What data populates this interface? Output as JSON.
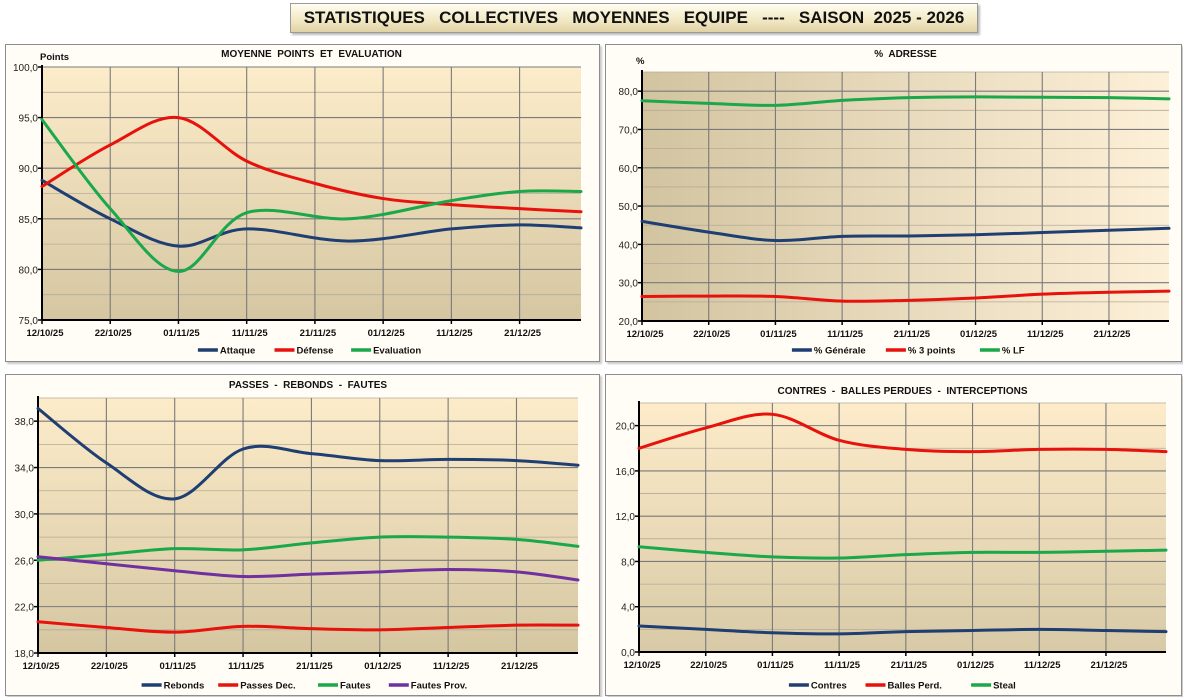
{
  "banner": {
    "title": "STATISTIQUES   COLLECTIVES   MOYENNES   EQUIPE   ----   SAISON  2025 - 2026"
  },
  "chart_data": [
    {
      "type": "line",
      "title": "MOYENNE  POINTS  ET  EVALUATION",
      "ylabel": "Points",
      "xlabel": "",
      "x_unit": "days since 12/10/25",
      "xlim": [
        0,
        79
      ],
      "ylim": [
        75,
        100
      ],
      "yticks": [
        75,
        80,
        85,
        90,
        95,
        100
      ],
      "ytick_labels": [
        "75,0",
        "80,0",
        "85,0",
        "90,0",
        "95,0",
        "100,0"
      ],
      "xticks": [
        0,
        10,
        20,
        30,
        40,
        50,
        60,
        70
      ],
      "xtick_labels": [
        "12/10/25",
        "22/10/25",
        "01/11/25",
        "11/11/25",
        "21/11/25",
        "01/12/25",
        "11/12/25",
        "21/12/25"
      ],
      "grid": true,
      "legend": "bottom",
      "series": [
        {
          "name": "Attaque",
          "color": "#1f3f73",
          "x": [
            0,
            10,
            20,
            30,
            45,
            60,
            70,
            79
          ],
          "values": [
            88.8,
            85.0,
            82.3,
            84.0,
            82.8,
            84.0,
            84.4,
            84.1
          ]
        },
        {
          "name": "Défense",
          "color": "#e8120c",
          "x": [
            0,
            10,
            20,
            30,
            40,
            50,
            60,
            70,
            79
          ],
          "values": [
            88.2,
            92.3,
            95.0,
            90.7,
            88.5,
            87.0,
            86.4,
            86.0,
            85.7
          ]
        },
        {
          "name": "Evaluation",
          "color": "#1aa84a",
          "x": [
            0,
            10,
            20,
            30,
            45,
            60,
            70,
            79
          ],
          "values": [
            94.8,
            86.0,
            79.8,
            85.6,
            85.0,
            86.8,
            87.7,
            87.7
          ]
        }
      ]
    },
    {
      "type": "line",
      "title": "%  ADRESSE",
      "ylabel": "%",
      "xlabel": "",
      "x_unit": "days since 12/10/25",
      "xlim": [
        0,
        79
      ],
      "ylim": [
        20,
        85
      ],
      "yticks": [
        20,
        30,
        40,
        50,
        60,
        70,
        80
      ],
      "ytick_labels": [
        "20,0",
        "30,0",
        "40,0",
        "50,0",
        "60,0",
        "70,0",
        "80,0"
      ],
      "xticks": [
        0,
        10,
        20,
        30,
        40,
        50,
        60,
        70
      ],
      "xtick_labels": [
        "12/10/25",
        "22/10/25",
        "01/11/25",
        "11/11/25",
        "21/11/25",
        "01/12/25",
        "11/12/25",
        "21/12/25"
      ],
      "grid": true,
      "legend": "bottom",
      "series": [
        {
          "name": "% Générale",
          "color": "#1f3f73",
          "x": [
            0,
            10,
            20,
            30,
            40,
            50,
            60,
            70,
            79
          ],
          "values": [
            46.0,
            43.2,
            41.0,
            42.1,
            42.2,
            42.5,
            43.1,
            43.7,
            44.2
          ]
        },
        {
          "name": "% 3 points",
          "color": "#e8120c",
          "x": [
            0,
            10,
            20,
            30,
            40,
            50,
            60,
            70,
            79
          ],
          "values": [
            26.4,
            26.5,
            26.4,
            25.2,
            25.4,
            26.0,
            27.0,
            27.5,
            27.8
          ]
        },
        {
          "name": "% LF",
          "color": "#1aa84a",
          "x": [
            0,
            10,
            20,
            30,
            40,
            50,
            60,
            70,
            79
          ],
          "values": [
            77.5,
            76.8,
            76.3,
            77.6,
            78.3,
            78.5,
            78.4,
            78.3,
            78.0
          ]
        }
      ]
    },
    {
      "type": "line",
      "title": "PASSES  -  REBONDS  -  FAUTES",
      "ylabel": "",
      "xlabel": "",
      "x_unit": "days since 12/10/25",
      "xlim": [
        0,
        79
      ],
      "ylim": [
        18,
        40
      ],
      "yticks": [
        18,
        22,
        26,
        30,
        34,
        38
      ],
      "ytick_labels": [
        "18,0",
        "22,0",
        "26,0",
        "30,0",
        "34,0",
        "38,0"
      ],
      "xticks": [
        0,
        10,
        20,
        30,
        40,
        50,
        60,
        70
      ],
      "xtick_labels": [
        "12/10/25",
        "22/10/25",
        "01/11/25",
        "11/11/25",
        "21/11/25",
        "01/12/25",
        "11/12/25",
        "21/12/25"
      ],
      "grid": true,
      "legend": "bottom",
      "series": [
        {
          "name": "Rebonds",
          "color": "#1f3f73",
          "x": [
            0,
            10,
            20,
            30,
            40,
            50,
            60,
            70,
            79
          ],
          "values": [
            39.1,
            34.4,
            31.3,
            35.6,
            35.2,
            34.6,
            34.7,
            34.6,
            34.2
          ]
        },
        {
          "name": "Passes Dec.",
          "color": "#e8120c",
          "x": [
            0,
            10,
            20,
            30,
            40,
            50,
            60,
            70,
            79
          ],
          "values": [
            20.7,
            20.2,
            19.8,
            20.3,
            20.1,
            20.0,
            20.2,
            20.4,
            20.4
          ]
        },
        {
          "name": "Fautes",
          "color": "#1aa84a",
          "x": [
            0,
            10,
            20,
            30,
            40,
            50,
            60,
            70,
            79
          ],
          "values": [
            26.0,
            26.5,
            27.0,
            26.9,
            27.5,
            28.0,
            28.0,
            27.8,
            27.2
          ]
        },
        {
          "name": "Fautes Prov.",
          "color": "#7030a0",
          "x": [
            0,
            10,
            20,
            30,
            40,
            50,
            60,
            70,
            79
          ],
          "values": [
            26.3,
            25.7,
            25.1,
            24.6,
            24.8,
            25.0,
            25.2,
            25.0,
            24.3
          ]
        }
      ]
    },
    {
      "type": "line",
      "title": "CONTRES  -  BALLES PERDUES  -  INTERCEPTIONS",
      "ylabel": "",
      "xlabel": "",
      "x_unit": "days since 12/10/25",
      "xlim": [
        0,
        79
      ],
      "ylim": [
        0,
        22
      ],
      "yticks": [
        0,
        4,
        8,
        12,
        16,
        20
      ],
      "ytick_labels": [
        "0,0",
        "4,0",
        "8,0",
        "12,0",
        "16,0",
        "20,0"
      ],
      "xticks": [
        0,
        10,
        20,
        30,
        40,
        50,
        60,
        70
      ],
      "xtick_labels": [
        "12/10/25",
        "22/10/25",
        "01/11/25",
        "11/11/25",
        "21/11/25",
        "01/12/25",
        "11/12/25",
        "21/12/25"
      ],
      "grid": true,
      "legend": "bottom",
      "series": [
        {
          "name": "Contres",
          "color": "#1f3f73",
          "x": [
            0,
            10,
            20,
            30,
            40,
            50,
            60,
            70,
            79
          ],
          "values": [
            2.3,
            2.0,
            1.7,
            1.6,
            1.8,
            1.9,
            2.0,
            1.9,
            1.8
          ]
        },
        {
          "name": "Balles Perd.",
          "color": "#e8120c",
          "x": [
            0,
            10,
            20,
            30,
            40,
            50,
            60,
            70,
            79
          ],
          "values": [
            18.0,
            19.8,
            21.0,
            18.7,
            17.9,
            17.7,
            17.9,
            17.9,
            17.7
          ]
        },
        {
          "name": "Steal",
          "color": "#1aa84a",
          "x": [
            0,
            10,
            20,
            30,
            40,
            50,
            60,
            70,
            79
          ],
          "values": [
            9.3,
            8.8,
            8.4,
            8.3,
            8.6,
            8.8,
            8.8,
            8.9,
            9.0
          ]
        }
      ]
    }
  ]
}
